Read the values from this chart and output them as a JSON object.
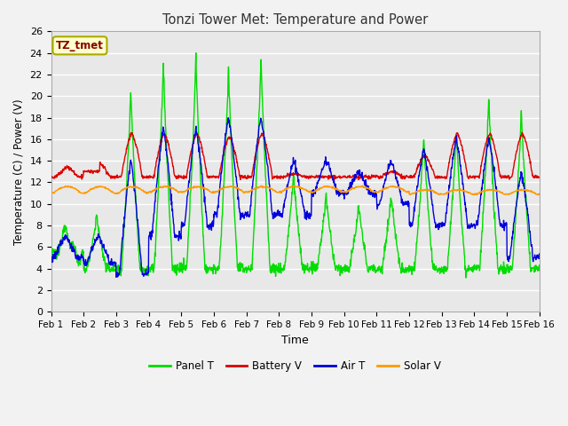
{
  "title": "Tonzi Tower Met: Temperature and Power",
  "xlabel": "Time",
  "ylabel": "Temperature (C) / Power (V)",
  "ylim": [
    0,
    26
  ],
  "yticks": [
    0,
    2,
    4,
    6,
    8,
    10,
    12,
    14,
    16,
    18,
    20,
    22,
    24,
    26
  ],
  "xtick_labels": [
    "Feb 1",
    "Feb 2",
    "Feb 3",
    "Feb 4",
    "Feb 5",
    "Feb 6",
    "Feb 7",
    "Feb 8",
    "Feb 9",
    "Feb 10",
    "Feb 11",
    "Feb 12",
    "Feb 13",
    "Feb 14",
    "Feb 15",
    "Feb 16"
  ],
  "label_box": "TZ_tmet",
  "colors": {
    "panel_t": "#00DD00",
    "battery_v": "#DD0000",
    "air_t": "#0000DD",
    "solar_v": "#FF9900"
  },
  "fig_bg": "#F2F2F2",
  "plot_bg": "#E8E8E8",
  "grid_color": "#FFFFFF",
  "legend_labels": [
    "Panel T",
    "Battery V",
    "Air T",
    "Solar V"
  ]
}
